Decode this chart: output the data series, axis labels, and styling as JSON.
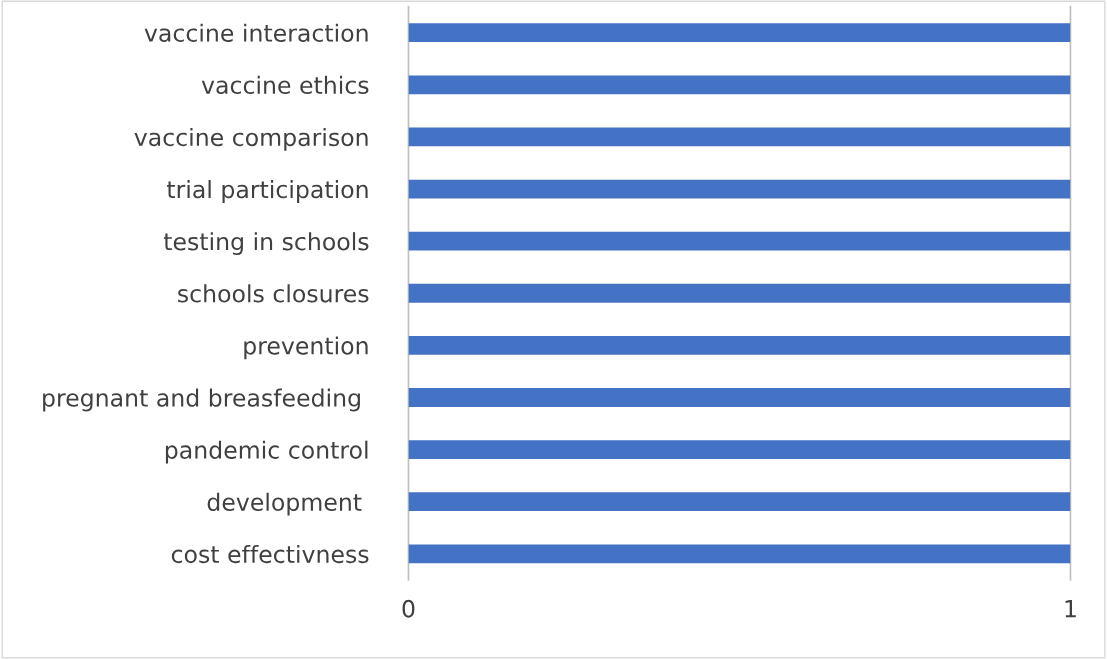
{
  "chart_data": {
    "type": "bar",
    "orientation": "horizontal",
    "categories": [
      "vaccine interaction",
      "vaccine ethics",
      "vaccine comparison",
      "trial participation",
      "testing in schools",
      "schools closures",
      "prevention",
      "pregnant and breasfeeding ",
      "pandemic control",
      "development ",
      "cost effectivness"
    ],
    "values": [
      1,
      1,
      1,
      1,
      1,
      1,
      1,
      1,
      1,
      1,
      1
    ],
    "color": "#4472c4",
    "xlim": [
      0,
      1
    ],
    "xticks": [
      0,
      1
    ]
  }
}
